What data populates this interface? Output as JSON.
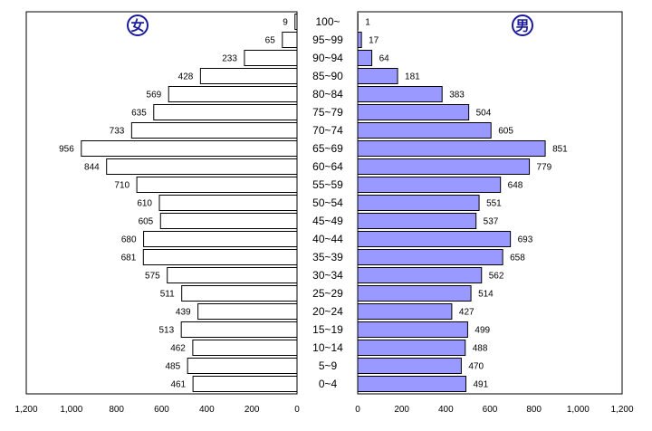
{
  "chart_data": {
    "type": "bar",
    "orientation": "horizontal",
    "layout": "population-pyramid",
    "categories": [
      "100~",
      "95~99",
      "90~94",
      "85~90",
      "80~84",
      "75~79",
      "70~74",
      "65~69",
      "60~64",
      "55~59",
      "50~54",
      "45~49",
      "40~44",
      "35~39",
      "30~34",
      "25~29",
      "20~24",
      "15~19",
      "10~14",
      "5~9",
      "0~4"
    ],
    "series": [
      {
        "name": "女",
        "side": "left",
        "color": "#ffffff",
        "values": [
          9,
          65,
          233,
          428,
          569,
          635,
          733,
          956,
          844,
          710,
          610,
          605,
          680,
          681,
          575,
          511,
          439,
          513,
          462,
          485,
          461
        ]
      },
      {
        "name": "男",
        "side": "right",
        "color": "#9999ff",
        "values": [
          1,
          17,
          64,
          181,
          383,
          504,
          605,
          851,
          779,
          648,
          551,
          537,
          693,
          658,
          562,
          514,
          427,
          499,
          488,
          470,
          491
        ]
      }
    ],
    "xlim": [
      0,
      1200
    ],
    "x_ticks": {
      "left": [
        "1,200",
        "1,000",
        "800",
        "600",
        "400",
        "200",
        "0"
      ],
      "right": [
        "0",
        "200",
        "400",
        "600",
        "800",
        "1,000",
        "1,200"
      ]
    },
    "grid": false,
    "legend": "badges-top"
  }
}
